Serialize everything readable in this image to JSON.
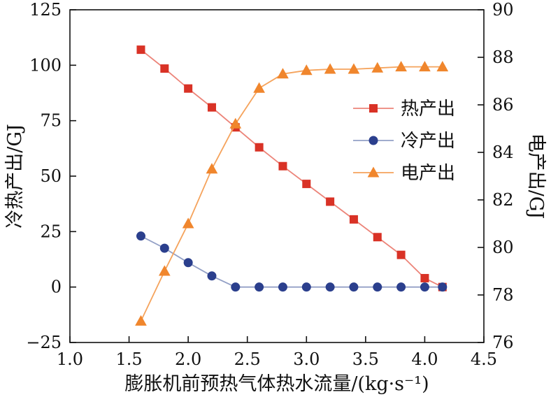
{
  "chart_data": {
    "type": "line",
    "title": "",
    "xlabel": "膨胀机前预热气体热水流量/(kg·s⁻¹)",
    "ylabel_left": "冷热产出/GJ",
    "ylabel_right": "电产出/GJ",
    "xlim": [
      1.0,
      4.5
    ],
    "ylim_left": [
      -25,
      125
    ],
    "ylim_right": [
      76,
      90
    ],
    "xtick_values": [
      1.0,
      1.5,
      2.0,
      2.5,
      3.0,
      3.5,
      4.0,
      4.5
    ],
    "xtick_labels": [
      "1.0",
      "1.5",
      "2.0",
      "2.5",
      "3.0",
      "3.5",
      "4.0",
      "4.5"
    ],
    "ytick_left_values": [
      -25,
      0,
      25,
      50,
      75,
      100,
      125
    ],
    "ytick_left_labels": [
      "−25",
      "0",
      "25",
      "50",
      "75",
      "100",
      "125"
    ],
    "ytick_right_values": [
      76,
      78,
      80,
      82,
      84,
      86,
      88,
      90
    ],
    "ytick_right_labels": [
      "76",
      "78",
      "80",
      "82",
      "84",
      "86",
      "88",
      "90"
    ],
    "grid": false,
    "legend_position": "center-right",
    "x": [
      1.6,
      1.8,
      2.0,
      2.2,
      2.4,
      2.6,
      2.8,
      3.0,
      3.2,
      3.4,
      3.6,
      3.8,
      4.0,
      4.15
    ],
    "series": [
      {
        "name": "热产出",
        "axis": "left",
        "marker": "square",
        "marker_color": "#d93226",
        "line_color": "#ec8479",
        "values": [
          107,
          98.5,
          89.5,
          81,
          72,
          63,
          54.5,
          46.5,
          38.5,
          30.5,
          22.5,
          14.5,
          4,
          0
        ]
      },
      {
        "name": "冷产出",
        "axis": "left",
        "marker": "circle",
        "marker_color": "#2b3f8d",
        "line_color": "#93a0c6",
        "values": [
          23,
          17.5,
          11,
          5,
          0,
          0,
          0,
          0,
          0,
          0,
          0,
          0,
          0,
          0
        ]
      },
      {
        "name": "电产出",
        "axis": "right",
        "marker": "triangle",
        "marker_color": "#f0862d",
        "line_color": "#f5a35c",
        "values": [
          76.9,
          79.0,
          81.0,
          83.3,
          85.2,
          86.7,
          87.3,
          87.45,
          87.5,
          87.5,
          87.55,
          87.6,
          87.6,
          87.6
        ]
      }
    ],
    "legend": [
      "热产出",
      "冷产出",
      "电产出"
    ]
  }
}
